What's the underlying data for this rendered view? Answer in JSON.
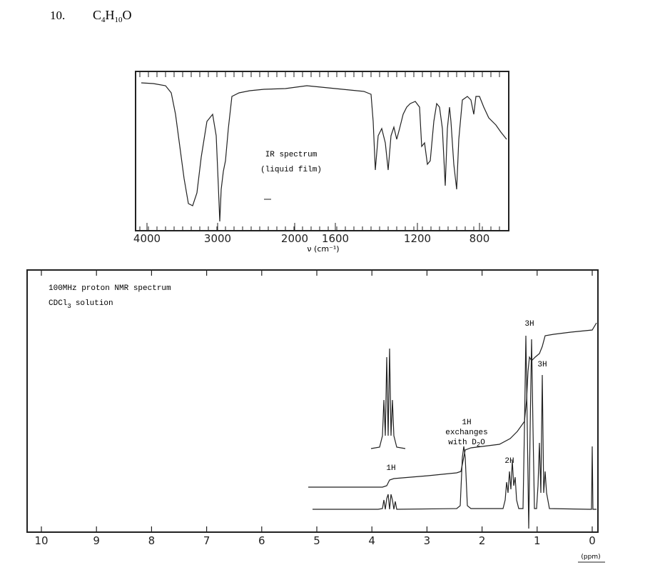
{
  "header": {
    "number": "10.",
    "formula": [
      "C",
      "4",
      "H",
      "10",
      "O"
    ]
  },
  "ir": {
    "labels": [
      "IR spectrum",
      "(liquid film)"
    ],
    "xticks": [
      4000,
      3000,
      2000,
      1600,
      1200,
      800
    ],
    "xlabel": "ν (cm⁻¹)"
  },
  "nmr": {
    "title": "100MHz proton NMR spectrum",
    "solvent": [
      "CDCl",
      "3",
      "solution"
    ],
    "annotations": {
      "ch3_doublet": "3H",
      "ch3_triplet": "3H",
      "oh": [
        "1H",
        "exchanges",
        "with D",
        "2",
        "O"
      ],
      "ch2": "2H",
      "ch": "1H"
    },
    "xticks": [
      10,
      9,
      8,
      7,
      6,
      5,
      4,
      3,
      2,
      1,
      0
    ],
    "xlabel": "(ppm)"
  }
}
